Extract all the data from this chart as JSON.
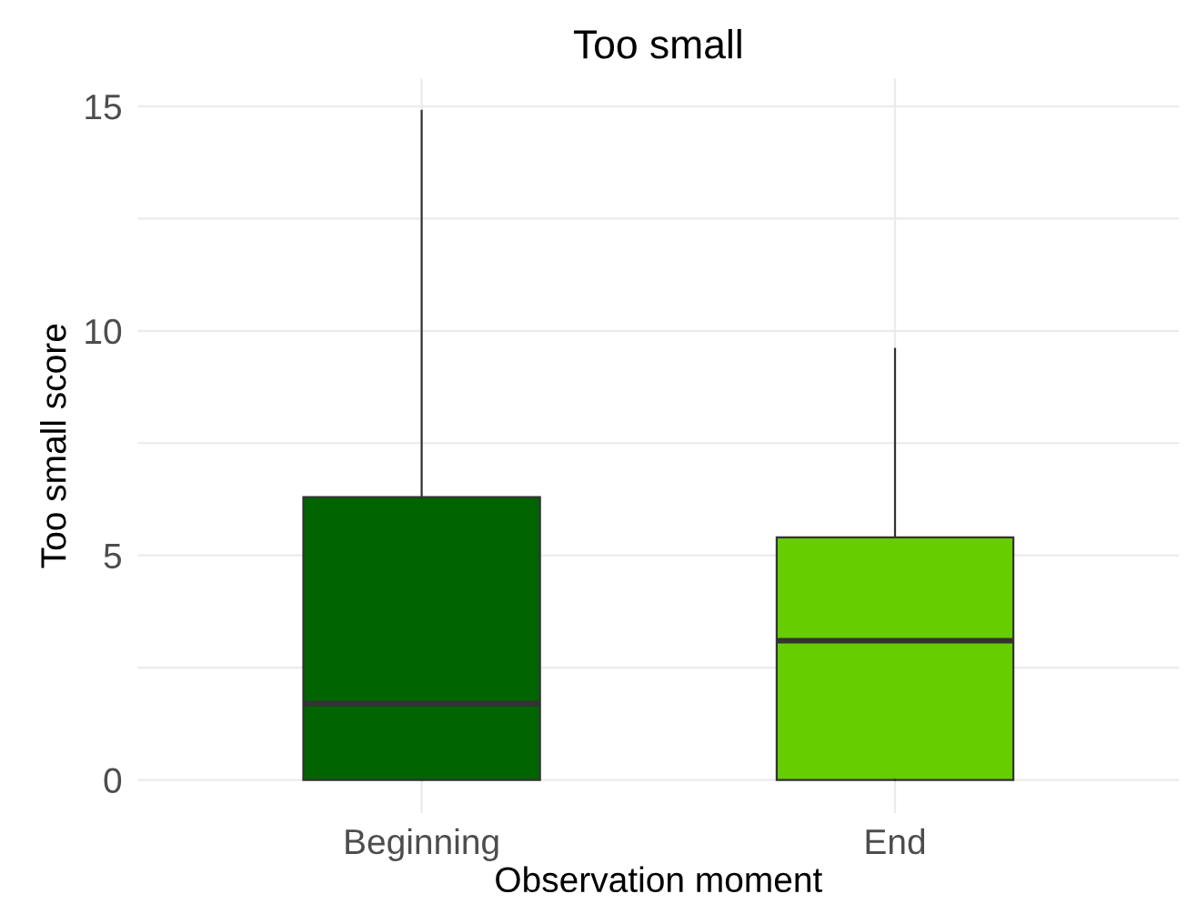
{
  "chart_data": {
    "type": "box",
    "title": "Too small",
    "xlabel": "Observation moment",
    "ylabel": "Too small score",
    "categories": [
      "Beginning",
      "End"
    ],
    "colors": [
      "#006400",
      "#66cd00"
    ],
    "boxes": [
      {
        "low": 0,
        "q1": 0,
        "median": 1.7,
        "q3": 6.3,
        "high": 14.9
      },
      {
        "low": 0,
        "q1": 0,
        "median": 3.1,
        "q3": 5.4,
        "high": 9.6
      }
    ],
    "ylim": [
      -0.74,
      15.62
    ],
    "yticks": [
      0,
      {
        "value": 2.5,
        "label": null
      },
      5,
      {
        "value": 7.5,
        "label": null
      },
      10,
      {
        "value": 12.5,
        "label": null
      },
      15
    ],
    "grid": true,
    "legend": false
  }
}
